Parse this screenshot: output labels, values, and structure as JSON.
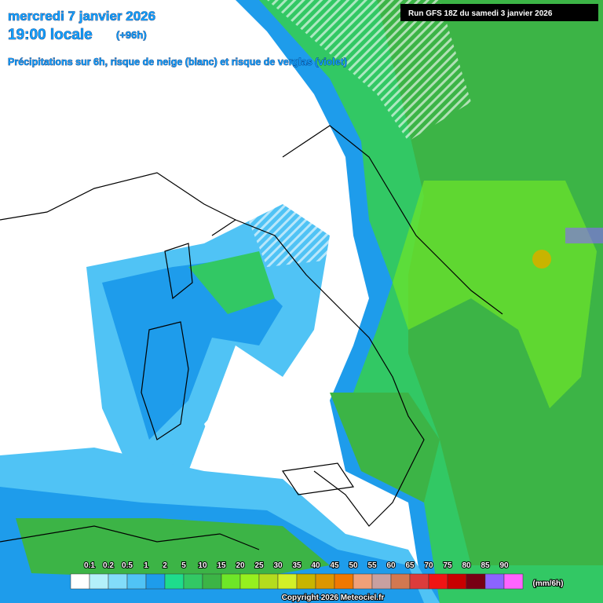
{
  "header": {
    "date": "mercredi 7 janvier 2026",
    "time": "19:00 locale",
    "lead": "(+96h)",
    "subtitle": "Précipitations sur 6h, risque de neige (blanc) et risque de verglas (violet)",
    "run": "Run GFS 18Z du samedi 3 janvier 2026"
  },
  "legend": {
    "labels": [
      0.1,
      0.2,
      0.5,
      1,
      2,
      5,
      10,
      15,
      20,
      25,
      30,
      35,
      40,
      45,
      50,
      55,
      60,
      65,
      70,
      75,
      80,
      85,
      90
    ],
    "colors": [
      "#ffffff",
      "#b4f0fa",
      "#82dcfa",
      "#50c3f5",
      "#1e9ceb",
      "#1edc8c",
      "#32c864",
      "#3cb446",
      "#6ee628",
      "#96f01e",
      "#b4dc1e",
      "#d2f028",
      "#c8b400",
      "#dc9600",
      "#f07800",
      "#f0a078",
      "#c8a0a0",
      "#d27850",
      "#dc3c3c",
      "#f01414",
      "#c80000",
      "#780014",
      "#8c64ff",
      "#ff64ff"
    ],
    "unit": "(mm/6h)"
  },
  "footer": {
    "copyright": "Copyright 2026 Meteociel.fr"
  }
}
